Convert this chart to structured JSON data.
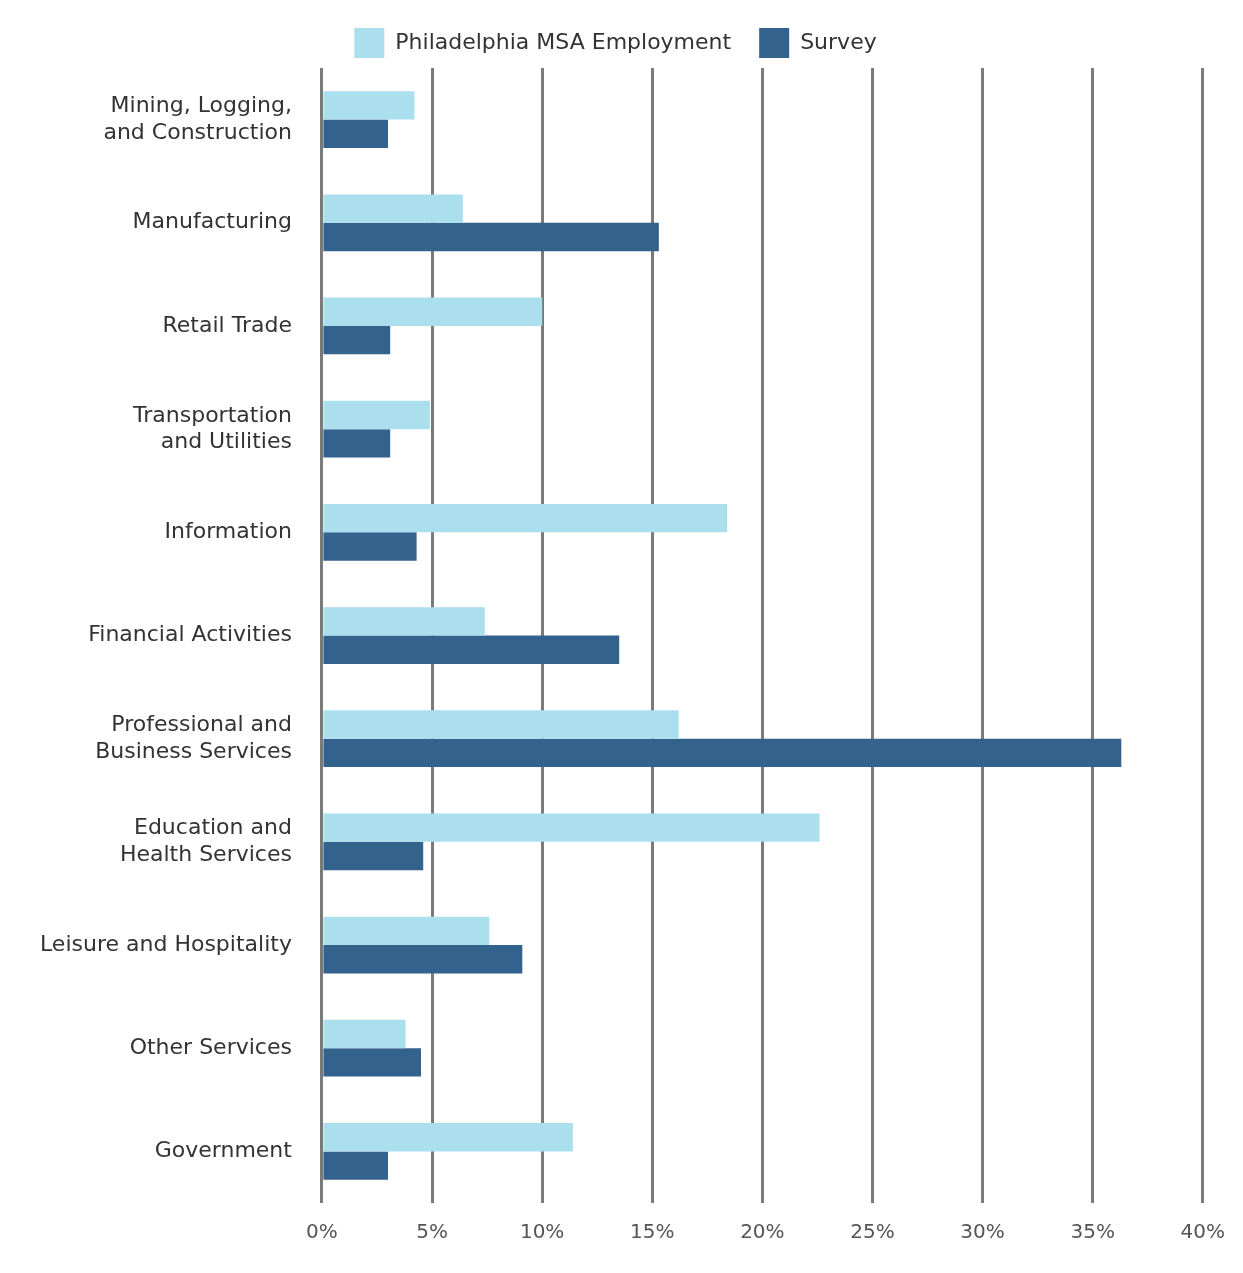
{
  "chart_data": {
    "type": "bar",
    "orientation": "horizontal",
    "categories": [
      "Mining, Logging,\nand Construction",
      "Manufacturing",
      "Retail Trade",
      "Transportation\nand Utilities",
      "Information",
      "Financial Activities",
      "Professional and\nBusiness Services",
      "Education and\nHealth Services",
      "Leisure and Hospitality",
      "Other Services",
      "Government"
    ],
    "series": [
      {
        "name": "Philadelphia MSA Employment",
        "color": "#abdfed",
        "values": [
          4.2,
          6.4,
          10.0,
          4.9,
          18.4,
          7.4,
          16.2,
          22.6,
          7.6,
          3.8,
          11.4
        ]
      },
      {
        "name": "Survey",
        "color": "#33628c",
        "values": [
          3.0,
          15.3,
          3.1,
          3.1,
          4.3,
          13.5,
          36.3,
          4.6,
          9.1,
          4.5,
          3.0
        ]
      }
    ],
    "xlim": [
      0,
      40
    ],
    "xticks": [
      {
        "value": 0,
        "label": "0%"
      },
      {
        "value": 5,
        "label": "5%"
      },
      {
        "value": 10,
        "label": "10%"
      },
      {
        "value": 15,
        "label": "15%"
      },
      {
        "value": 20,
        "label": "20%"
      },
      {
        "value": 25,
        "label": "25%"
      },
      {
        "value": 30,
        "label": "30%"
      },
      {
        "value": 35,
        "label": "35%"
      },
      {
        "value": 40,
        "label": "40%"
      }
    ],
    "grid": "x",
    "legend": "top"
  }
}
